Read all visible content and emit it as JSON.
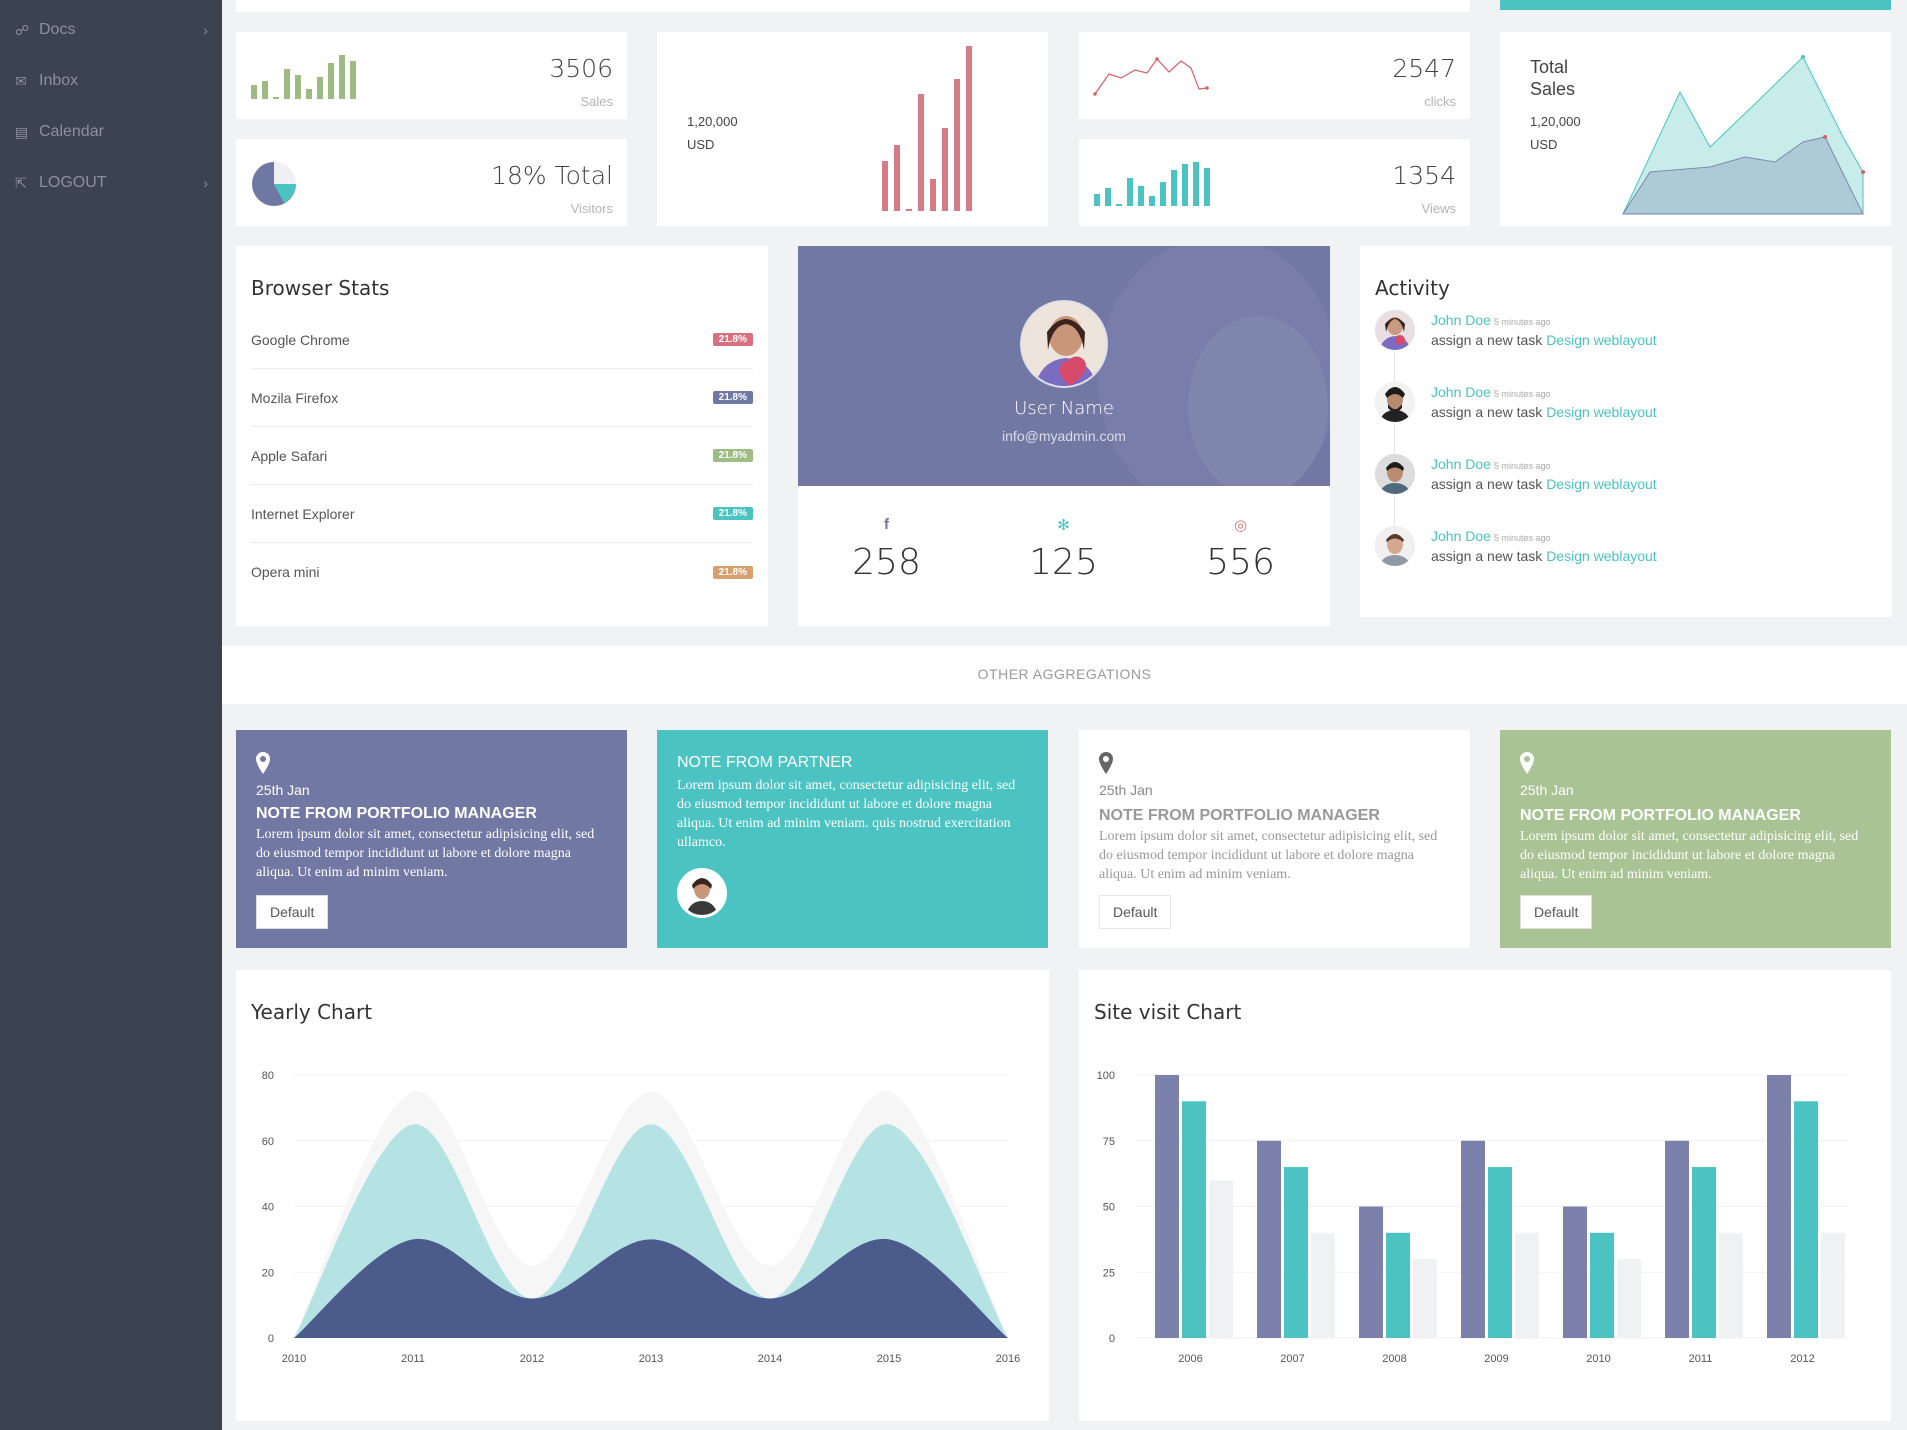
{
  "sidebar": {
    "items": [
      {
        "label": "Docs",
        "icon": "docs-icon",
        "has_chevron": true
      },
      {
        "label": "Inbox",
        "icon": "mail-icon",
        "has_chevron": false
      },
      {
        "label": "Calendar",
        "icon": "calendar-icon",
        "has_chevron": false
      },
      {
        "label": "LOGOUT",
        "icon": "logout-icon",
        "has_chevron": true
      }
    ]
  },
  "stats": {
    "sales": {
      "value": "3506",
      "label": "Sales",
      "color": "#9cba82"
    },
    "visitors": {
      "value": "18% Total",
      "label": "Visitors",
      "pie_fraction": 0.18
    },
    "usd_card": {
      "value": "1,20,000",
      "unit": "USD",
      "color": "#d57b87"
    },
    "clicks": {
      "value": "2547",
      "label": "clicks",
      "color": "#d95f6a"
    },
    "views": {
      "value": "1354",
      "label": "Views",
      "color": "#4ac3c2"
    },
    "total_sales": {
      "title_line1": "Total",
      "title_line2": "Sales",
      "value": "1,20,000",
      "unit": "USD"
    }
  },
  "browser_stats": {
    "title": "Browser Stats",
    "rows": [
      {
        "name": "Google Chrome",
        "badge": "21.8%",
        "color": "#d9707d"
      },
      {
        "name": "Mozila Firefox",
        "badge": "21.8%",
        "color": "#6f77a3"
      },
      {
        "name": "Apple Safari",
        "badge": "21.8%",
        "color": "#9dbd85"
      },
      {
        "name": "Internet Explorer",
        "badge": "21.8%",
        "color": "#4ac3c2"
      },
      {
        "name": "Opera mini",
        "badge": "21.8%",
        "color": "#d9a06f"
      }
    ]
  },
  "profile": {
    "name": "User Name",
    "email": "info@myadmin.com",
    "facebook": "258",
    "twitter": "125",
    "dribbble": "556"
  },
  "activity": {
    "title": "Activity",
    "items": [
      {
        "user": "John Doe",
        "time": "5 minutes ago",
        "text": "assign a new task",
        "link": "Design weblayout"
      },
      {
        "user": "John Doe",
        "time": "5 minutes ago",
        "text": "assign a new task",
        "link": "Design weblayout"
      },
      {
        "user": "John Doe",
        "time": "5 minutes ago",
        "text": "assign a new task",
        "link": "Design weblayout"
      },
      {
        "user": "John Doe",
        "time": "5 minutes ago",
        "text": "assign a new task",
        "link": "Design weblayout"
      }
    ]
  },
  "aggregations": {
    "title": "OTHER AGGREGATIONS"
  },
  "notes": [
    {
      "date": "25th Jan",
      "title": "NOTE FROM PORTFOLIO MANAGER",
      "text": "Lorem ipsum dolor sit amet, consectetur adipisicing elit, sed do eiusmod tempor incididunt ut labore et dolore magna aliqua. Ut enim ad minim veniam.",
      "button": "Default",
      "bg": "#7178a4"
    },
    {
      "title": "NOTE FROM PARTNER",
      "text": "Lorem ipsum dolor sit amet, consectetur adipisicing elit, sed do eiusmod tempor incididunt ut labore et dolore magna aliqua. Ut enim ad minim veniam. quis nostrud exercitation ullamco.",
      "bg": "#4ac3c2"
    },
    {
      "date": "25th Jan",
      "title": "NOTE FROM PORTFOLIO MANAGER",
      "text": "Lorem ipsum dolor sit amet, consectetur adipisicing elit, sed do eiusmod tempor incididunt ut labore et dolore magna aliqua. Ut enim ad minim veniam.",
      "button": "Default",
      "bg": "#ffffff"
    },
    {
      "date": "25th Jan",
      "title": "NOTE FROM PORTFOLIO MANAGER",
      "text": "Lorem ipsum dolor sit amet, consectetur adipisicing elit, sed do eiusmod tempor incididunt ut labore et dolore magna aliqua. Ut enim ad minim veniam.",
      "button": "Default",
      "bg": "#a9c394"
    }
  ],
  "yearly": {
    "title": "Yearly Chart"
  },
  "sitevisit": {
    "title": "Site visit Chart"
  },
  "chart_data": [
    {
      "type": "area",
      "title": "Yearly Chart",
      "x": [
        "2010",
        "2011",
        "2012",
        "2013",
        "2014",
        "2015",
        "2016"
      ],
      "ylim": [
        0,
        80
      ],
      "yticks": [
        0,
        20,
        40,
        60,
        80
      ],
      "series": [
        {
          "values": [
            0,
            75,
            22,
            75,
            22,
            75,
            0
          ],
          "color": "#f6f6f6"
        },
        {
          "values": [
            0,
            65,
            12,
            65,
            12,
            65,
            0
          ],
          "color": "#b5e2e2"
        },
        {
          "values": [
            0,
            30,
            12,
            30,
            12,
            30,
            0
          ],
          "color": "#4b5b8c"
        }
      ]
    },
    {
      "type": "bar",
      "title": "Site visit Chart",
      "categories": [
        "2006",
        "2007",
        "2008",
        "2009",
        "2010",
        "2011",
        "2012"
      ],
      "ylim": [
        0,
        100
      ],
      "yticks": [
        0,
        25,
        50,
        75,
        100
      ],
      "series": [
        {
          "values": [
            100,
            75,
            50,
            75,
            50,
            75,
            100
          ],
          "color": "#7b81ab"
        },
        {
          "values": [
            90,
            65,
            40,
            65,
            40,
            65,
            90
          ],
          "color": "#4ac3c2"
        },
        {
          "values": [
            60,
            40,
            30,
            40,
            30,
            40,
            40
          ],
          "color": "#f0f1f3"
        }
      ]
    }
  ]
}
